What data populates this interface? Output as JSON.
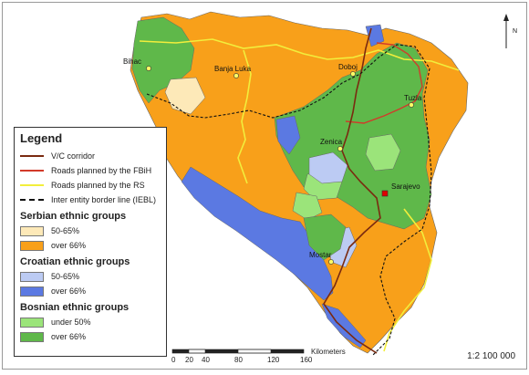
{
  "legend": {
    "title": "Legend",
    "lines": [
      {
        "label": "V/C corridor",
        "color": "#7a2a10",
        "style": "solid"
      },
      {
        "label": "Roads planned by the FBiH",
        "color": "#d23a2a",
        "style": "solid"
      },
      {
        "label": "Roads planned by the RS",
        "color": "#f2ee3c",
        "style": "solid"
      },
      {
        "label": "Inter entity border line (IEBL)",
        "color": "#111111",
        "style": "dashed"
      }
    ],
    "groups": [
      {
        "title": "Serbian ethnic groups",
        "items": [
          {
            "label": "50-65%",
            "color": "#fde9b8"
          },
          {
            "label": "over 66%",
            "color": "#f8a01a"
          }
        ]
      },
      {
        "title": "Croatian ethnic groups",
        "items": [
          {
            "label": "50-65%",
            "color": "#bccbf3"
          },
          {
            "label": "over 66%",
            "color": "#5b79e2"
          }
        ]
      },
      {
        "title": "Bosnian ethnic groups",
        "items": [
          {
            "label": "under 50%",
            "color": "#9be47a"
          },
          {
            "label": "over 66%",
            "color": "#5fb84a"
          }
        ]
      }
    ]
  },
  "cities": {
    "bihac": "Bihac",
    "banja_luka": "Banja Luka",
    "doboj": "Doboj",
    "tuzla": "Tuzla",
    "zenica": "Zenica",
    "sarajevo": "Sarajevo",
    "mostar": "Mostar"
  },
  "scale": {
    "ticks": [
      "0",
      "20",
      "40",
      "80",
      "120",
      "160"
    ],
    "unit": "Kilometers",
    "ratio": "1:2 100 000"
  },
  "north_label": "N"
}
